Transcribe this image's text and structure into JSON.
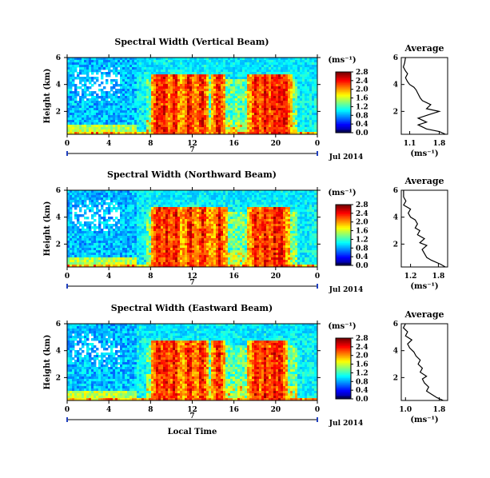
{
  "chart_data": [
    {
      "type": "heatmap",
      "title": "Spectral Width (Vertical Beam)",
      "ylabel": "Height (km)",
      "x_ticks": [
        "0",
        "4",
        "8",
        "12",
        "16",
        "20",
        "0"
      ],
      "y_ticks": [
        "2",
        "4",
        "6"
      ],
      "date_label": "7",
      "year_label": "Jul 2014",
      "colorbar": {
        "unit": "(ms⁻¹)",
        "ticks": [
          "0.0",
          "0.4",
          "0.8",
          "1.2",
          "1.6",
          "2.0",
          "2.4",
          "2.8"
        ]
      },
      "hot_bands_hours": [
        8.6,
        9.2,
        10.2,
        11.6,
        12.8,
        14.4,
        18.0,
        18.9,
        19.7,
        20.3,
        20.8
      ],
      "average_profile": {
        "title": "Average",
        "xlabel": "(ms⁻¹)",
        "x_ticks": [
          "1.1",
          "1.8"
        ],
        "y_ticks": [
          "2",
          "4",
          "6"
        ],
        "xlim": [
          0.9,
          2.0
        ],
        "ylim": [
          0.3,
          6.0
        ],
        "height_km": [
          0.3,
          0.5,
          0.7,
          1.0,
          1.2,
          1.5,
          1.8,
          2.0,
          2.2,
          2.5,
          2.8,
          3.0,
          3.3,
          3.6,
          3.8,
          4.0,
          4.2,
          4.5,
          4.8,
          5.0,
          5.3,
          5.6,
          6.0
        ],
        "values": [
          1.95,
          1.8,
          1.5,
          1.3,
          1.5,
          1.3,
          1.6,
          1.8,
          1.5,
          1.6,
          1.4,
          1.35,
          1.3,
          1.25,
          1.2,
          1.1,
          1.05,
          1.0,
          1.05,
          1.0,
          0.95,
          0.98,
          1.0
        ]
      }
    },
    {
      "type": "heatmap",
      "title": "Spectral Width (Northward Beam)",
      "ylabel": "Height (km)",
      "x_ticks": [
        "0",
        "4",
        "8",
        "12",
        "16",
        "20",
        "0"
      ],
      "y_ticks": [
        "2",
        "4",
        "6"
      ],
      "date_label": "7",
      "year_label": "Jul 2014",
      "colorbar": {
        "unit": "(ms⁻¹)",
        "ticks": [
          "0.0",
          "0.4",
          "0.8",
          "1.2",
          "1.6",
          "2.0",
          "2.4",
          "2.8"
        ]
      },
      "hot_bands_hours": [
        8.6,
        9.4,
        10.3,
        11.7,
        12.9,
        14.5,
        18.0,
        18.9,
        19.8,
        20.4
      ],
      "average_profile": {
        "title": "Average",
        "xlabel": "(ms⁻¹)",
        "x_ticks": [
          "1.2",
          "1.8"
        ],
        "y_ticks": [
          "2",
          "4",
          "6"
        ],
        "xlim": [
          1.0,
          2.0
        ],
        "ylim": [
          0.3,
          6.0
        ],
        "height_km": [
          0.3,
          0.5,
          0.8,
          1.0,
          1.3,
          1.6,
          1.9,
          2.1,
          2.4,
          2.7,
          3.0,
          3.2,
          3.5,
          3.8,
          4.0,
          4.3,
          4.6,
          4.9,
          5.2,
          5.5,
          6.0
        ],
        "values": [
          1.95,
          1.85,
          1.65,
          1.55,
          1.5,
          1.45,
          1.55,
          1.4,
          1.5,
          1.35,
          1.4,
          1.3,
          1.35,
          1.3,
          1.2,
          1.15,
          1.2,
          1.05,
          1.1,
          1.05,
          1.05
        ]
      }
    },
    {
      "type": "heatmap",
      "title": "Spectral Width (Eastward Beam)",
      "ylabel": "Height (km)",
      "xlabel": "Local Time",
      "x_ticks": [
        "0",
        "4",
        "8",
        "12",
        "16",
        "20",
        "0"
      ],
      "y_ticks": [
        "2",
        "4",
        "6"
      ],
      "date_label": "7",
      "year_label": "Jul 2014",
      "colorbar": {
        "unit": "(ms⁻¹)",
        "ticks": [
          "0.0",
          "0.4",
          "0.8",
          "1.2",
          "1.6",
          "2.0",
          "2.4",
          "2.8"
        ]
      },
      "hot_bands_hours": [
        8.6,
        9.3,
        10.2,
        11.6,
        12.8,
        14.4,
        18.0,
        18.9,
        19.7,
        20.3
      ],
      "average_profile": {
        "title": "Average",
        "xlabel": "(ms⁻¹)",
        "x_ticks": [
          "1.0",
          "1.8"
        ],
        "y_ticks": [
          "2",
          "4",
          "6"
        ],
        "xlim": [
          0.9,
          2.0
        ],
        "ylim": [
          0.3,
          6.0
        ],
        "height_km": [
          0.3,
          0.5,
          0.8,
          1.0,
          1.3,
          1.6,
          1.9,
          2.1,
          2.4,
          2.7,
          3.0,
          3.3,
          3.6,
          3.9,
          4.2,
          4.5,
          4.8,
          5.1,
          5.4,
          5.7,
          6.0
        ],
        "values": [
          1.9,
          1.75,
          1.6,
          1.5,
          1.55,
          1.45,
          1.4,
          1.5,
          1.35,
          1.4,
          1.3,
          1.35,
          1.25,
          1.2,
          1.1,
          1.05,
          1.15,
          1.0,
          1.05,
          0.95,
          1.0
        ]
      }
    }
  ]
}
